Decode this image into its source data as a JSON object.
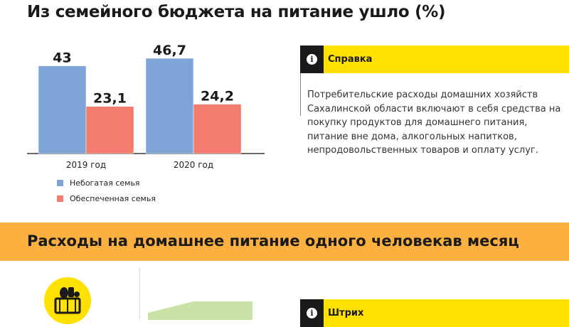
{
  "title": "Из семейного бюджета на питание ушло (%)",
  "chart_data": {
    "type": "bar",
    "categories": [
      "2019 год",
      "2020 год"
    ],
    "series": [
      {
        "name": "Небогатая семья",
        "values": [
          43,
          46.7
        ],
        "labels": [
          "43",
          "46,7"
        ],
        "color": "#7fa5d8"
      },
      {
        "name": "Обеспеченная семья",
        "values": [
          23.1,
          24.2
        ],
        "labels": [
          "23,1",
          "24,2"
        ],
        "color": "#f47c6e"
      }
    ],
    "ylim": [
      0,
      50
    ]
  },
  "legend": {
    "items": [
      "Небогатая семья",
      "Обеспеченная семья"
    ]
  },
  "info": {
    "title": "Справка",
    "icon": "info-icon",
    "text": "Потребительские расходы домашних хозяйств Сахалинской области включают в себя средства на покупку продуктов для домашнего питания, питание вне дома, алкогольных напитков, непродовольственных товаров и оплату услуг."
  },
  "section2": {
    "title": "Расходы на домашнее питание одного человекав месяц",
    "basket_icon": "basket-icon",
    "info_title": "Штрих"
  },
  "colors": {
    "accent_yellow": "#ffe100",
    "band_orange": "#fbb040",
    "area_green": "#c9e2a6"
  }
}
